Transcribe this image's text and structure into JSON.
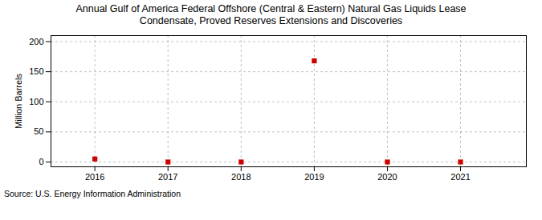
{
  "chart_data": {
    "type": "scatter",
    "title": "Annual Gulf of America Federal Offshore (Central & Eastern) Natural Gas Liquids Lease",
    "subtitle": "Condensate, Proved Reserves Extensions and Discoveries",
    "y_label": "Million Barrels",
    "caption": "Source: U.S. Energy Information Administration",
    "x": [
      2016,
      2017,
      2018,
      2019,
      2020,
      2021
    ],
    "values": [
      5,
      0,
      0,
      168,
      0,
      0
    ],
    "color": "#cc0000",
    "marker": "square",
    "xlim": [
      2015.4,
      2021.9
    ],
    "xticks": [
      2016,
      2017,
      2018,
      2019,
      2020,
      2021
    ],
    "ylim": [
      -8,
      210
    ],
    "yticks": [
      0,
      50,
      100,
      150,
      200
    ],
    "grid": true
  }
}
